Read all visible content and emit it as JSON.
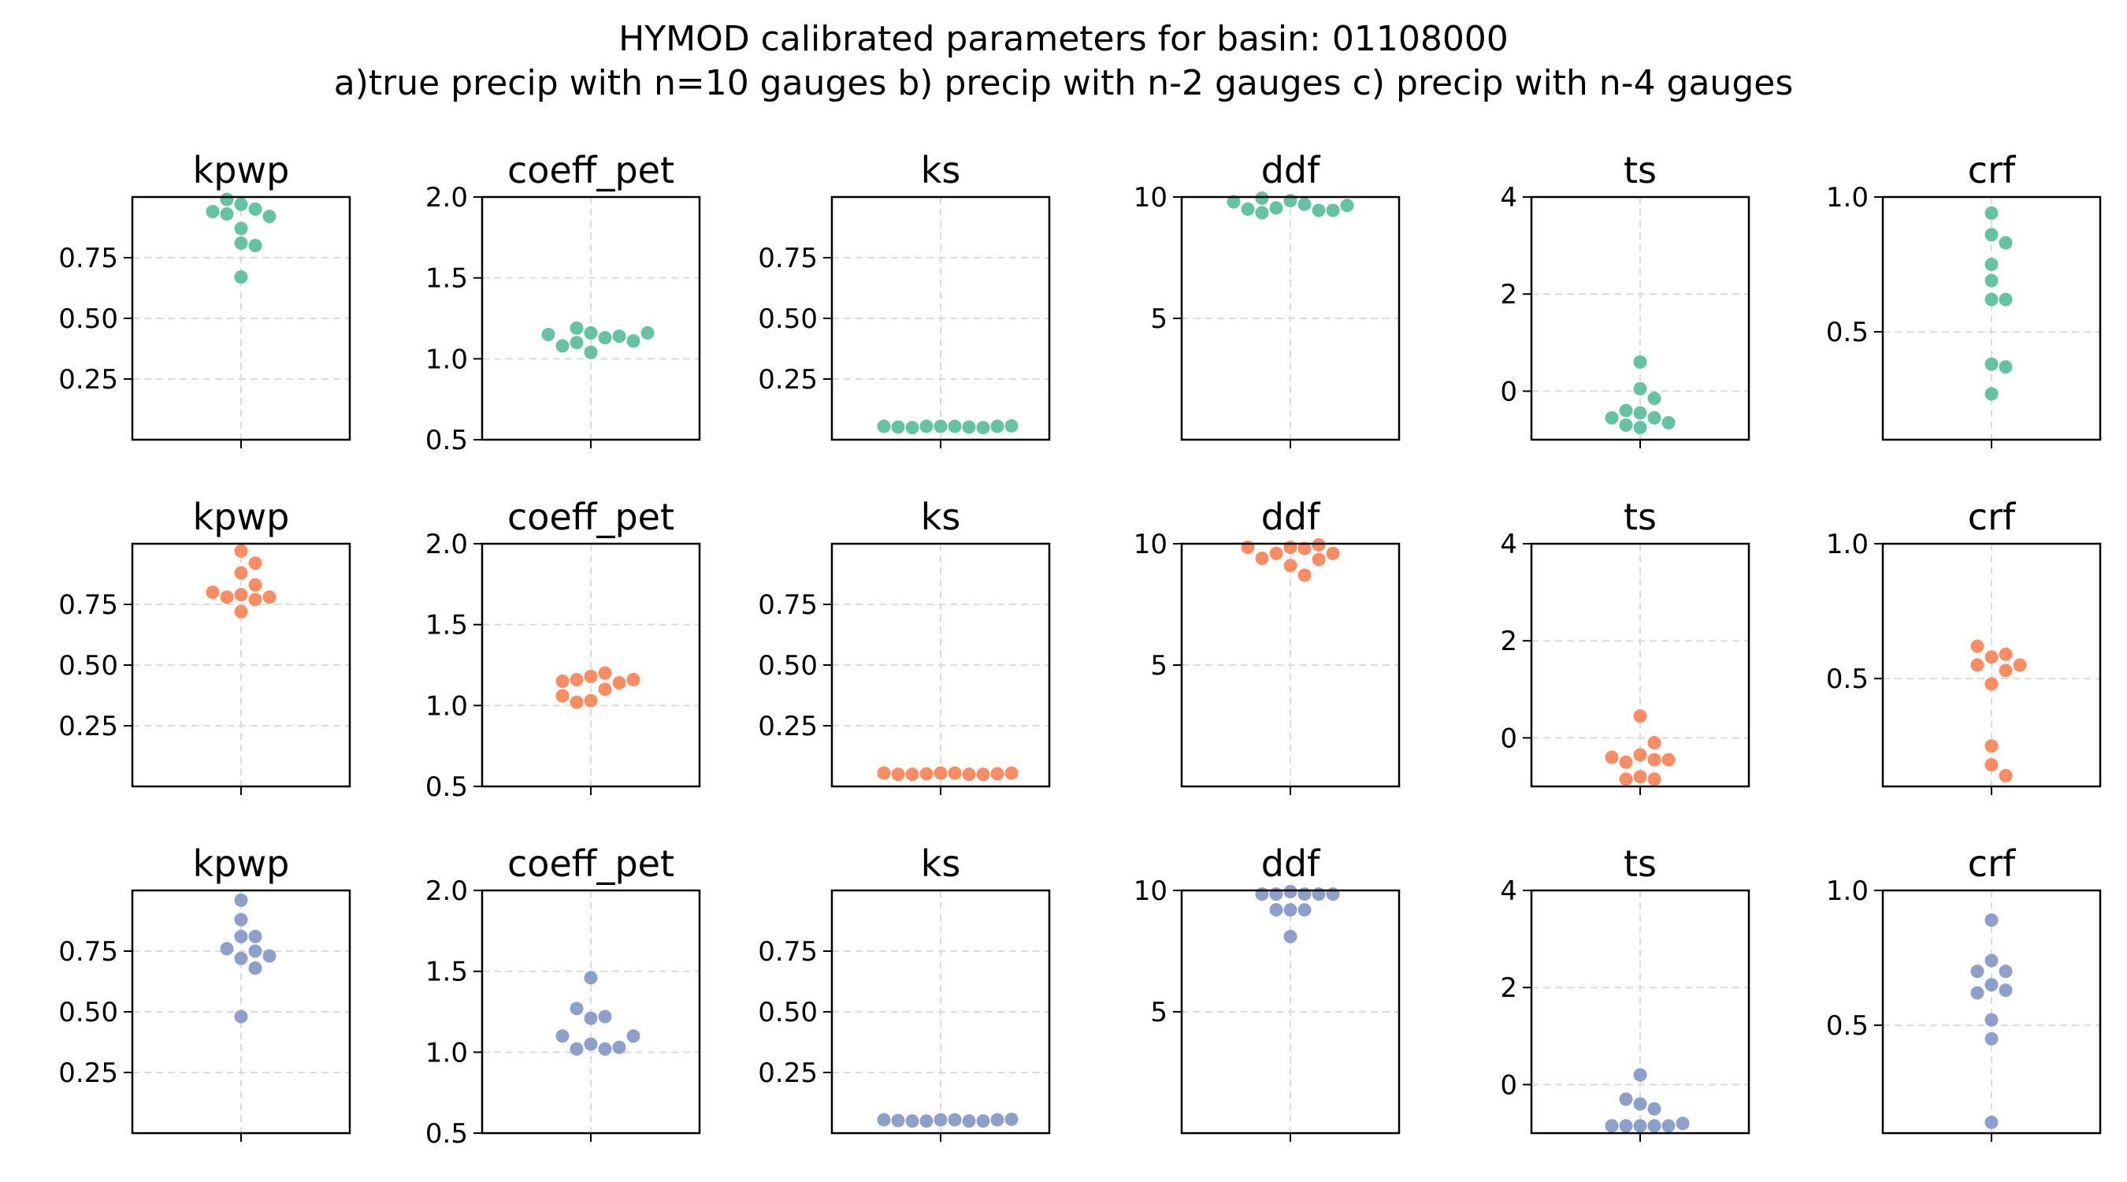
{
  "title_line1": "HYMOD calibrated parameters for basin: 01108000",
  "title_line2": "a)true precip with n=10 gauges b) precip with n-2 gauges c) precip with n-4 gauges",
  "chart_data": {
    "type": "scatter",
    "style": "swarm",
    "grid": true,
    "grid_style": "dashed light gray",
    "rows": [
      {
        "color": "#66c2a5"
      },
      {
        "color": "#fc8d62"
      },
      {
        "color": "#8da0cb"
      }
    ],
    "params": [
      {
        "name": "kpwp",
        "ylim": [
          0.0,
          1.0
        ],
        "yticks": [
          0.25,
          0.5,
          0.75
        ],
        "tick_labels": [
          "0.25",
          "0.50",
          "0.75"
        ]
      },
      {
        "name": "coeff_pet",
        "ylim": [
          0.5,
          2.0
        ],
        "yticks": [
          0.5,
          1.0,
          1.5,
          2.0
        ],
        "tick_labels": [
          "0.5",
          "1.0",
          "1.5",
          "2.0"
        ]
      },
      {
        "name": "ks",
        "ylim": [
          0.0,
          1.0
        ],
        "yticks": [
          0.25,
          0.5,
          0.75
        ],
        "tick_labels": [
          "0.25",
          "0.50",
          "0.75"
        ]
      },
      {
        "name": "ddf",
        "ylim": [
          0.0,
          10.0
        ],
        "yticks": [
          5,
          10
        ],
        "tick_labels": [
          "5",
          "10"
        ]
      },
      {
        "name": "ts",
        "ylim": [
          -1.0,
          4.0
        ],
        "yticks": [
          0,
          2,
          4
        ],
        "tick_labels": [
          "0",
          "2",
          "4"
        ]
      },
      {
        "name": "crf",
        "ylim": [
          0.1,
          1.0
        ],
        "yticks": [
          0.5,
          1.0
        ],
        "tick_labels": [
          "0.5",
          "1.0"
        ]
      }
    ],
    "values": [
      [
        [
          0.97,
          0.95,
          0.93,
          0.92,
          0.94,
          0.99,
          0.87,
          0.81,
          0.8,
          0.67
        ],
        [
          1.16,
          1.13,
          1.19,
          1.1,
          1.04,
          1.14,
          1.08,
          1.11,
          1.15,
          1.16
        ],
        [
          0.055,
          0.055,
          0.055,
          0.052,
          0.05,
          0.05,
          0.052,
          0.055,
          0.055,
          0.057
        ],
        [
          9.85,
          9.7,
          9.55,
          9.45,
          9.35,
          9.95,
          9.45,
          9.5,
          9.65,
          9.8
        ],
        [
          -0.45,
          -0.55,
          -0.7,
          -0.75,
          0.05,
          0.6,
          -0.15,
          -0.65,
          -0.4,
          -0.55
        ],
        [
          0.94,
          0.86,
          0.83,
          0.75,
          0.69,
          0.62,
          0.62,
          0.38,
          0.37,
          0.27
        ]
      ],
      [
        [
          0.97,
          0.92,
          0.88,
          0.83,
          0.79,
          0.78,
          0.77,
          0.78,
          0.8,
          0.72
        ],
        [
          1.18,
          1.1,
          1.16,
          1.03,
          1.02,
          1.14,
          1.06,
          1.15,
          1.16,
          1.2
        ],
        [
          0.055,
          0.055,
          0.052,
          0.05,
          0.05,
          0.05,
          0.05,
          0.052,
          0.055,
          0.055
        ],
        [
          9.85,
          9.8,
          9.6,
          9.35,
          9.1,
          8.7,
          9.4,
          9.6,
          9.85,
          9.95
        ],
        [
          -0.35,
          -0.45,
          -0.8,
          -0.1,
          0.45,
          -0.5,
          -0.85,
          -0.45,
          -0.4,
          -0.85
        ],
        [
          0.58,
          0.53,
          0.55,
          0.59,
          0.48,
          0.62,
          0.55,
          0.25,
          0.18,
          0.14
        ]
      ],
      [
        [
          0.96,
          0.88,
          0.81,
          0.81,
          0.76,
          0.72,
          0.68,
          0.73,
          0.75,
          0.48
        ],
        [
          1.05,
          1.02,
          1.21,
          1.02,
          1.46,
          1.22,
          1.03,
          1.27,
          1.1,
          1.1
        ],
        [
          0.055,
          0.055,
          0.05,
          0.05,
          0.05,
          0.05,
          0.052,
          0.055,
          0.055,
          0.057
        ],
        [
          9.95,
          9.85,
          9.85,
          9.2,
          9.85,
          9.2,
          9.2,
          9.85,
          9.85,
          8.1
        ],
        [
          -0.85,
          -0.85,
          -0.4,
          -0.5,
          -0.85,
          0.2,
          -0.85,
          -0.3,
          -0.85,
          -0.8
        ],
        [
          0.89,
          0.74,
          0.7,
          0.7,
          0.65,
          0.63,
          0.62,
          0.52,
          0.45,
          0.14
        ]
      ]
    ]
  }
}
